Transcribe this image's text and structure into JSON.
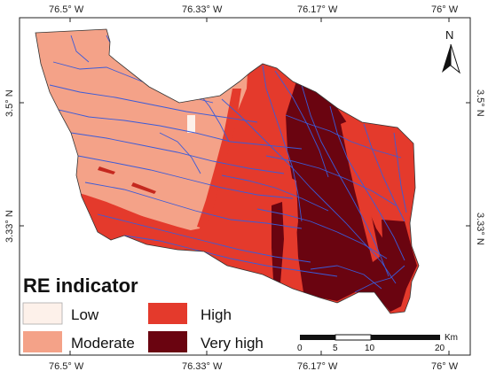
{
  "map": {
    "top_ticks": [
      "76.5° W",
      "76.33° W",
      "76.17° W",
      "76° W"
    ],
    "bottom_ticks": [
      "76.5° W",
      "76.33° W",
      "76.17° W",
      "76° W"
    ],
    "left_ticks": [
      "3.5° N",
      "3.33° N"
    ],
    "right_ticks": [
      "3.5° N",
      "3.33° N"
    ],
    "north_label": "N",
    "legend": {
      "title": "RE indicator",
      "items": [
        {
          "label": "Low",
          "color": "#fdf1ea"
        },
        {
          "label": "High",
          "color": "#e43a2c"
        },
        {
          "label": "Moderate",
          "color": "#f4a288"
        },
        {
          "label": "Very high",
          "color": "#6a0410"
        }
      ]
    },
    "scale_bar": {
      "unit": "Km",
      "labels": [
        "0",
        "5",
        "10",
        "20"
      ]
    },
    "colors": {
      "low": "#fdf1ea",
      "moderate": "#f4a288",
      "high": "#e43a2c",
      "very_high": "#6a0410",
      "rivers": "#3b5bd8"
    }
  }
}
